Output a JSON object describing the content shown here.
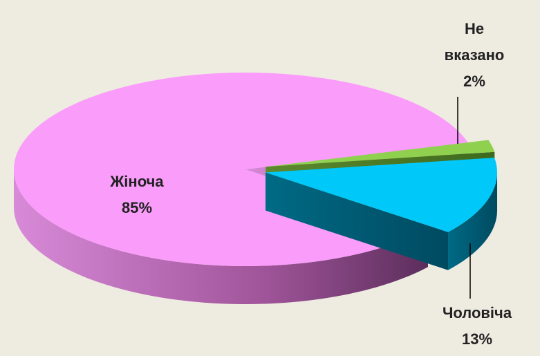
{
  "chart_data": {
    "type": "pie",
    "categories": [
      "Жіноча",
      "Не вказано",
      "Чоловіча"
    ],
    "values": [
      85,
      2,
      13
    ],
    "value_labels": [
      "85%",
      "2%",
      "13%"
    ],
    "colors": [
      "#fa9cfa",
      "#8fd14f",
      "#00c8f8"
    ]
  }
}
